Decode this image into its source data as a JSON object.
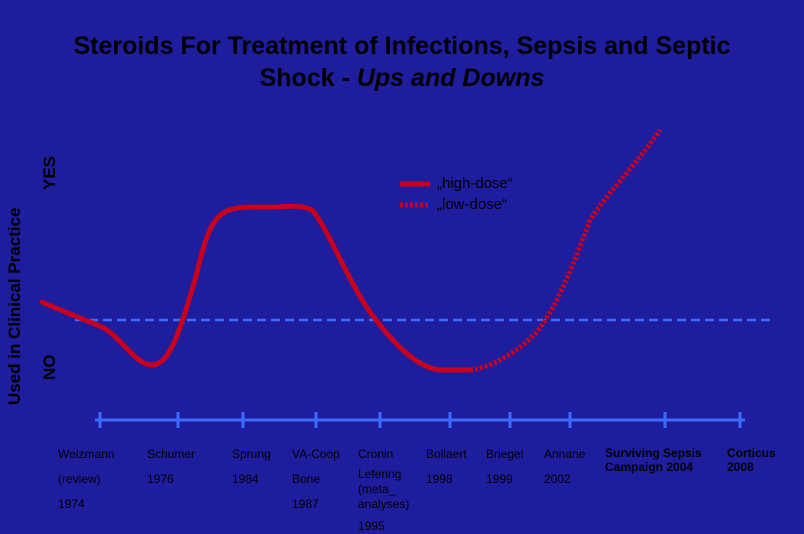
{
  "title": {
    "line1": "Steroids For Treatment of Infections, Sepsis and Septic",
    "line2_plain": "Shock - ",
    "line2_italic": "Ups and Downs"
  },
  "y_axis": {
    "label": "Used in Clinical Practice",
    "yes": "YES",
    "no": "NO"
  },
  "legend": {
    "high_dose": "„high-dose“",
    "low_dose": "„low-dose“"
  },
  "colors": {
    "background": "#1d1d9d",
    "curve": "#c8001e",
    "axis": "#3d6bff",
    "text": "#000000"
  },
  "studies": [
    {
      "lines": [
        "Weizmann",
        "(review)",
        "1974"
      ]
    },
    {
      "lines": [
        "Schumer",
        "1976"
      ]
    },
    {
      "lines": [
        "Sprung",
        "1984"
      ]
    },
    {
      "lines": [
        "VA-Coop",
        "Bone",
        "1987"
      ]
    },
    {
      "lines": [
        "Cronin",
        "Lefering",
        "(meta_",
        "analyses)",
        "1995"
      ]
    },
    {
      "lines": [
        "Bollaert",
        "1998"
      ]
    },
    {
      "lines": [
        "Briegel",
        "1999"
      ]
    },
    {
      "lines": [
        "Annane",
        "2002"
      ]
    },
    {
      "lines": [
        "Surviving Sepsis",
        "Campaign 2004"
      ],
      "bold": true
    },
    {
      "lines": [
        "Corticus",
        "2008"
      ],
      "bold": true
    }
  ]
}
